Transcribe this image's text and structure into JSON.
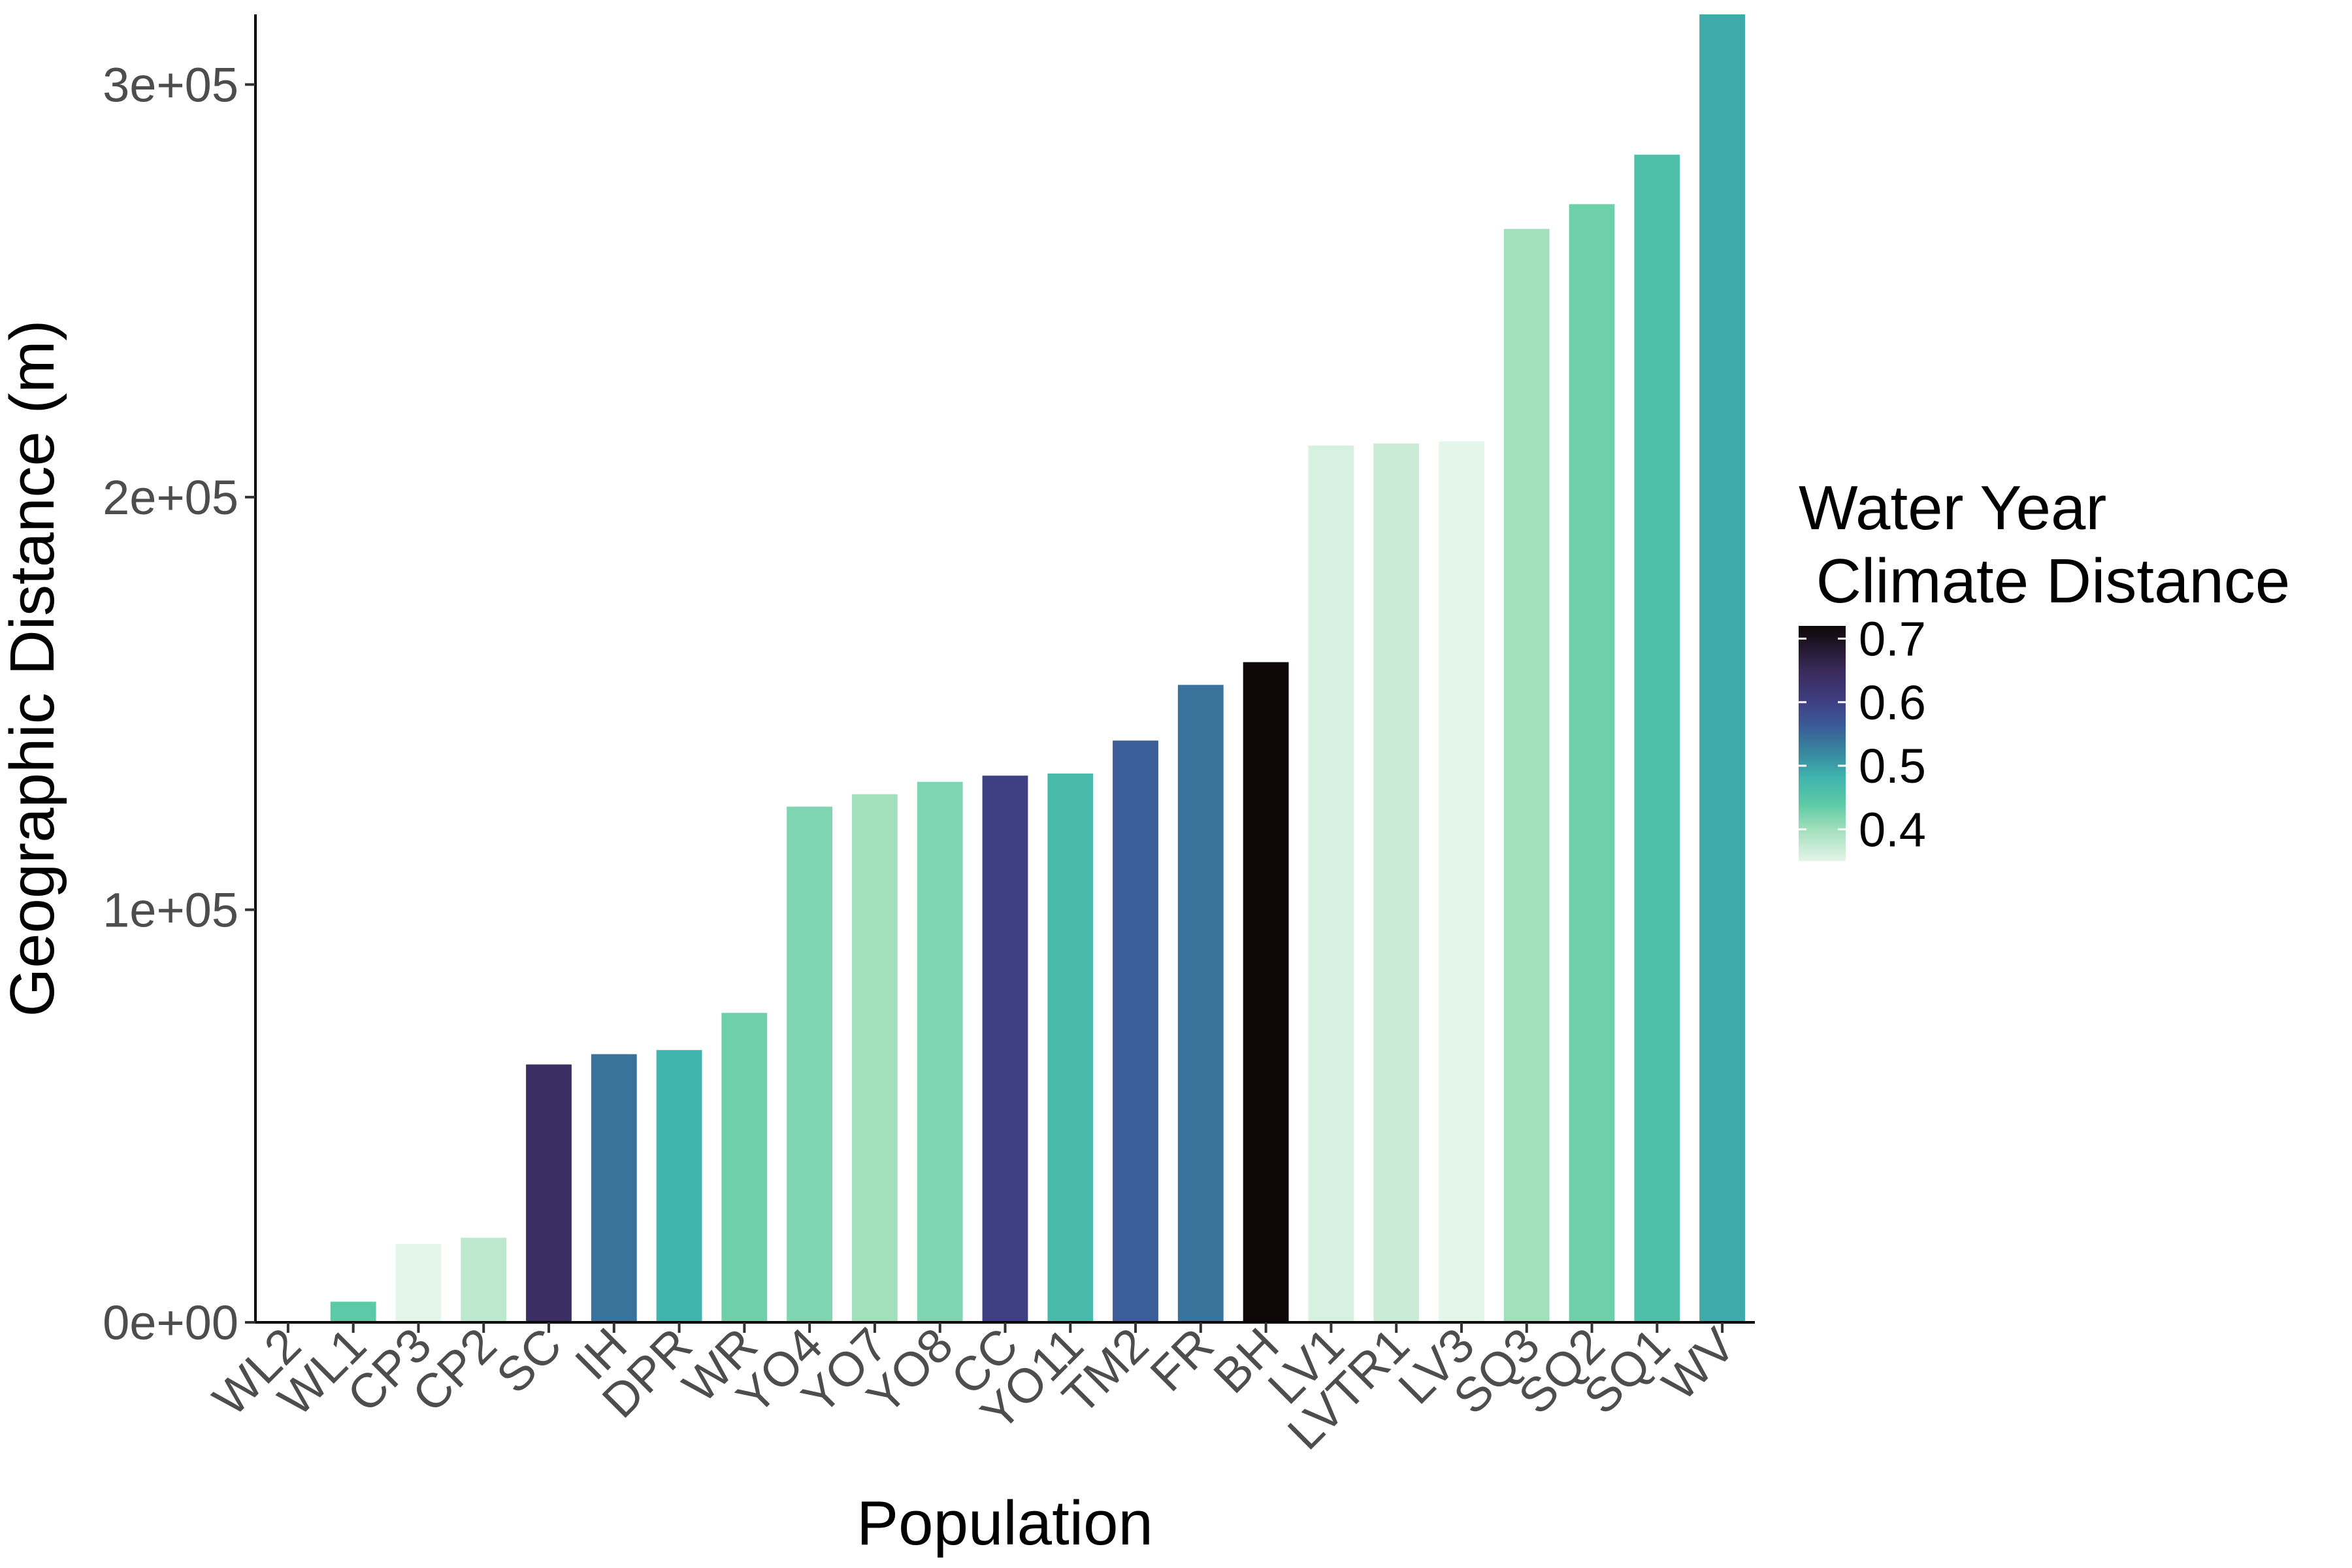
{
  "chart_data": {
    "type": "bar",
    "xlabel": "Population",
    "ylabel": "Geographic Distance (m)",
    "ylim": [
      0,
      317000
    ],
    "yticks": [
      0,
      100000,
      200000,
      300000
    ],
    "ytick_labels": [
      "0e+00",
      "1e+05",
      "2e+05",
      "3e+05"
    ],
    "categories": [
      "WL2",
      "WL1",
      "CP3",
      "CP2",
      "SC",
      "IH",
      "DPR",
      "WR",
      "YO4",
      "YO7",
      "YO8",
      "CC",
      "YO11",
      "TM2",
      "FR",
      "BH",
      "LV1",
      "LVTR1",
      "LV3",
      "SQ3",
      "SQ2",
      "SQ1",
      "WV"
    ],
    "values": [
      0,
      5000,
      19000,
      20500,
      62500,
      65000,
      66000,
      75000,
      125000,
      128000,
      131000,
      132500,
      133000,
      141000,
      154500,
      160000,
      212500,
      213000,
      213500,
      265000,
      271000,
      283000,
      317000
    ],
    "fill_values": [
      0,
      0.44,
      0.35,
      0.38,
      0.64,
      0.54,
      0.48,
      0.43,
      0.42,
      0.4,
      0.42,
      0.6,
      0.47,
      0.56,
      0.54,
      0.74,
      0.36,
      0.37,
      0.35,
      0.4,
      0.43,
      0.46,
      0.49
    ],
    "legend": {
      "title_line1": "Water Year",
      "title_line2": " Climate Distance",
      "placement": "right",
      "min": 0.35,
      "max": 0.72,
      "ticks": [
        0.7,
        0.6,
        0.5,
        0.4
      ],
      "tick_labels": [
        "0.7",
        "0.6",
        "0.5",
        "0.4"
      ]
    },
    "colorscale": [
      {
        "v": 0.35,
        "color": "#e4f5e9"
      },
      {
        "v": 0.4,
        "color": "#a2dfbb"
      },
      {
        "v": 0.44,
        "color": "#5ccaa6"
      },
      {
        "v": 0.48,
        "color": "#40b5ae"
      },
      {
        "v": 0.52,
        "color": "#37899f"
      },
      {
        "v": 0.56,
        "color": "#3b5d98"
      },
      {
        "v": 0.6,
        "color": "#3f3f84"
      },
      {
        "v": 0.65,
        "color": "#3a2a5a"
      },
      {
        "v": 0.72,
        "color": "#0e0707"
      }
    ],
    "grid": false
  }
}
